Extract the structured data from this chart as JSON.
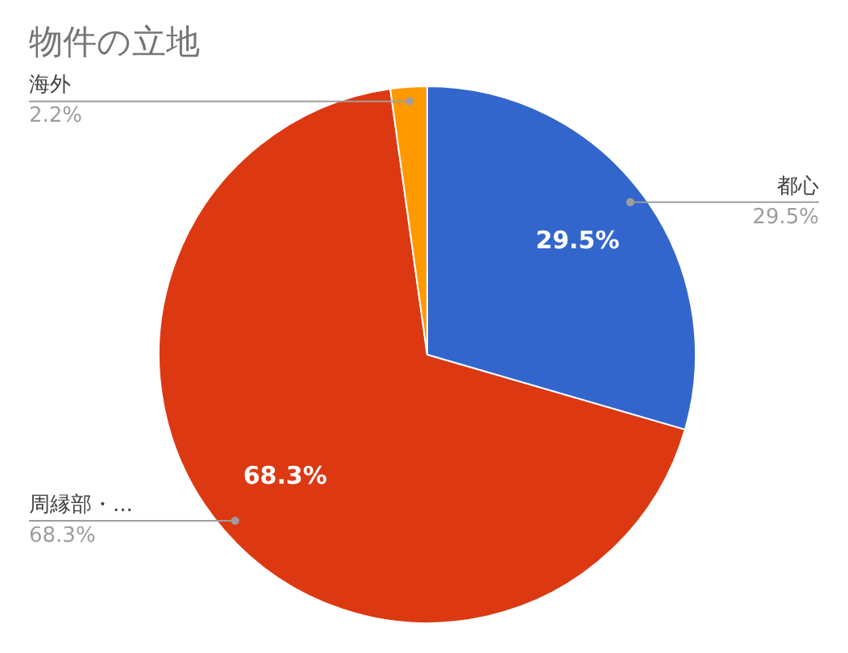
{
  "chart_data": {
    "type": "pie",
    "title": "物件の立地",
    "categories": [
      "都心",
      "周縁部・...",
      "海外"
    ],
    "values": [
      29.5,
      68.3,
      2.2
    ],
    "colors": [
      "#3366cc",
      "#dc3912",
      "#ff9900"
    ],
    "value_labels": [
      "29.5%",
      "68.3%",
      "2.2%"
    ],
    "legend": false
  }
}
